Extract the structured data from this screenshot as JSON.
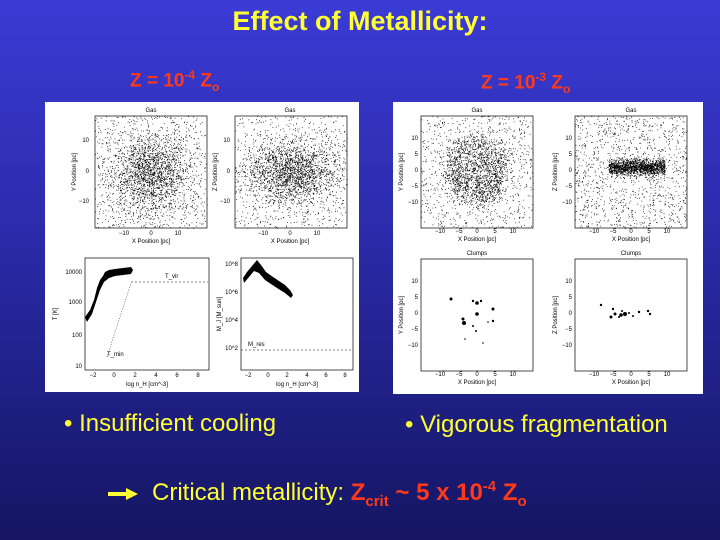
{
  "title": "Effect of Metallicity:",
  "left": {
    "z_prefix": "Z = 10",
    "z_exp": "-4",
    "z_base": "Z",
    "z_sub": "o",
    "plots": {
      "gas_xy": {
        "title": "Gas",
        "ylabel": "Y Position [pc]",
        "xlabel": "X Position [pc]",
        "xticks": [
          "−10",
          "0",
          "10"
        ],
        "yticks": [
          "10",
          "0",
          "−10"
        ]
      },
      "gas_xz": {
        "title": "Gas",
        "ylabel": "Z Position [pc]",
        "xlabel": "X Position [pc]",
        "xticks": [
          "−10",
          "0",
          "10"
        ],
        "yticks": [
          "10",
          "0",
          "−10"
        ]
      },
      "temp": {
        "ylabel": "T [K]",
        "xlabel": "log n_H [cm^-3]",
        "xticks": [
          "−2",
          "0",
          "2",
          "4",
          "6",
          "8"
        ],
        "yticks": [
          "10000",
          "1000",
          "100",
          "10"
        ],
        "ann_tvir": "T_vir",
        "ann_tmin": "T_min"
      },
      "mass": {
        "ylabel": "M_J [M_sun]",
        "xlabel": "log n_H [cm^-3]",
        "xticks": [
          "−2",
          "0",
          "2",
          "4",
          "6",
          "8"
        ],
        "yticks": [
          "10^8",
          "10^6",
          "10^4",
          "10^2"
        ],
        "ann_mres": "M_res"
      }
    },
    "bullet": "• Insufficient cooling"
  },
  "right": {
    "z_prefix": "Z = 10",
    "z_exp": "-3",
    "z_base": "Z",
    "z_sub": "o",
    "plots": {
      "gas_xy": {
        "title": "Gas",
        "ylabel": "Y Position [pc]",
        "xlabel": "X Position [pc]",
        "xticks": [
          "−10",
          "−5",
          "0",
          "5",
          "10"
        ],
        "yticks": [
          "10",
          "5",
          "0",
          "−5",
          "−10"
        ]
      },
      "gas_xz": {
        "title": "Gas",
        "ylabel": "Z Position [pc]",
        "xlabel": "X Position [pc]",
        "xticks": [
          "−10",
          "−5",
          "0",
          "5",
          "10"
        ],
        "yticks": [
          "10",
          "5",
          "0",
          "−5",
          "−10"
        ]
      },
      "clumps_xy": {
        "title": "Clumps",
        "ylabel": "Y Position [pc]",
        "xlabel": "X Position [pc]",
        "xticks": [
          "−10",
          "−5",
          "0",
          "5",
          "10"
        ],
        "yticks": [
          "10",
          "5",
          "0",
          "−5",
          "−10"
        ]
      },
      "clumps_xz": {
        "title": "Clumps",
        "ylabel": "Z Position [pc]",
        "xlabel": "X Position [pc]",
        "xticks": [
          "−10",
          "−5",
          "0",
          "5",
          "10"
        ],
        "yticks": [
          "10",
          "5",
          "0",
          "−5",
          "−10"
        ]
      }
    },
    "bullet": "• Vigorous fragmentation"
  },
  "bottom": {
    "lead": "Critical metallicity:",
    "z_base": "Z",
    "z_sub": "crit",
    "mid": " ~ 5 x 10",
    "exp": "-4",
    "z2": " Z",
    "z2_sub": "o"
  }
}
